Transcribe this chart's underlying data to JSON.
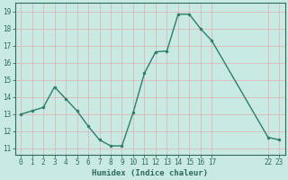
{
  "x": [
    0,
    1,
    2,
    3,
    4,
    5,
    6,
    7,
    8,
    9,
    10,
    11,
    12,
    13,
    14,
    15,
    16,
    17,
    22,
    23
  ],
  "y": [
    13.0,
    13.2,
    13.4,
    14.6,
    13.9,
    13.2,
    12.3,
    11.5,
    11.15,
    11.15,
    13.1,
    15.4,
    16.65,
    16.7,
    18.85,
    18.85,
    18.0,
    17.3,
    11.65,
    11.5
  ],
  "yticks": [
    11,
    12,
    13,
    14,
    15,
    16,
    17,
    18,
    19
  ],
  "ylim": [
    10.65,
    19.5
  ],
  "xlim": [
    -0.5,
    23.5
  ],
  "xlabel": "Humidex (Indice chaleur)",
  "line_color": "#2d7d6e",
  "marker_color": "#2d7d6e",
  "bg_color": "#c8eae2",
  "grid_color": "#ddb8b8",
  "axis_color": "#2d6b5e",
  "xlabel_color": "#2d6b5e",
  "tick_label_color": "#2d6b5e",
  "fontsize_tick": 5.5,
  "fontsize_xlabel": 6.5,
  "linewidth": 1.0,
  "markersize": 2.0
}
